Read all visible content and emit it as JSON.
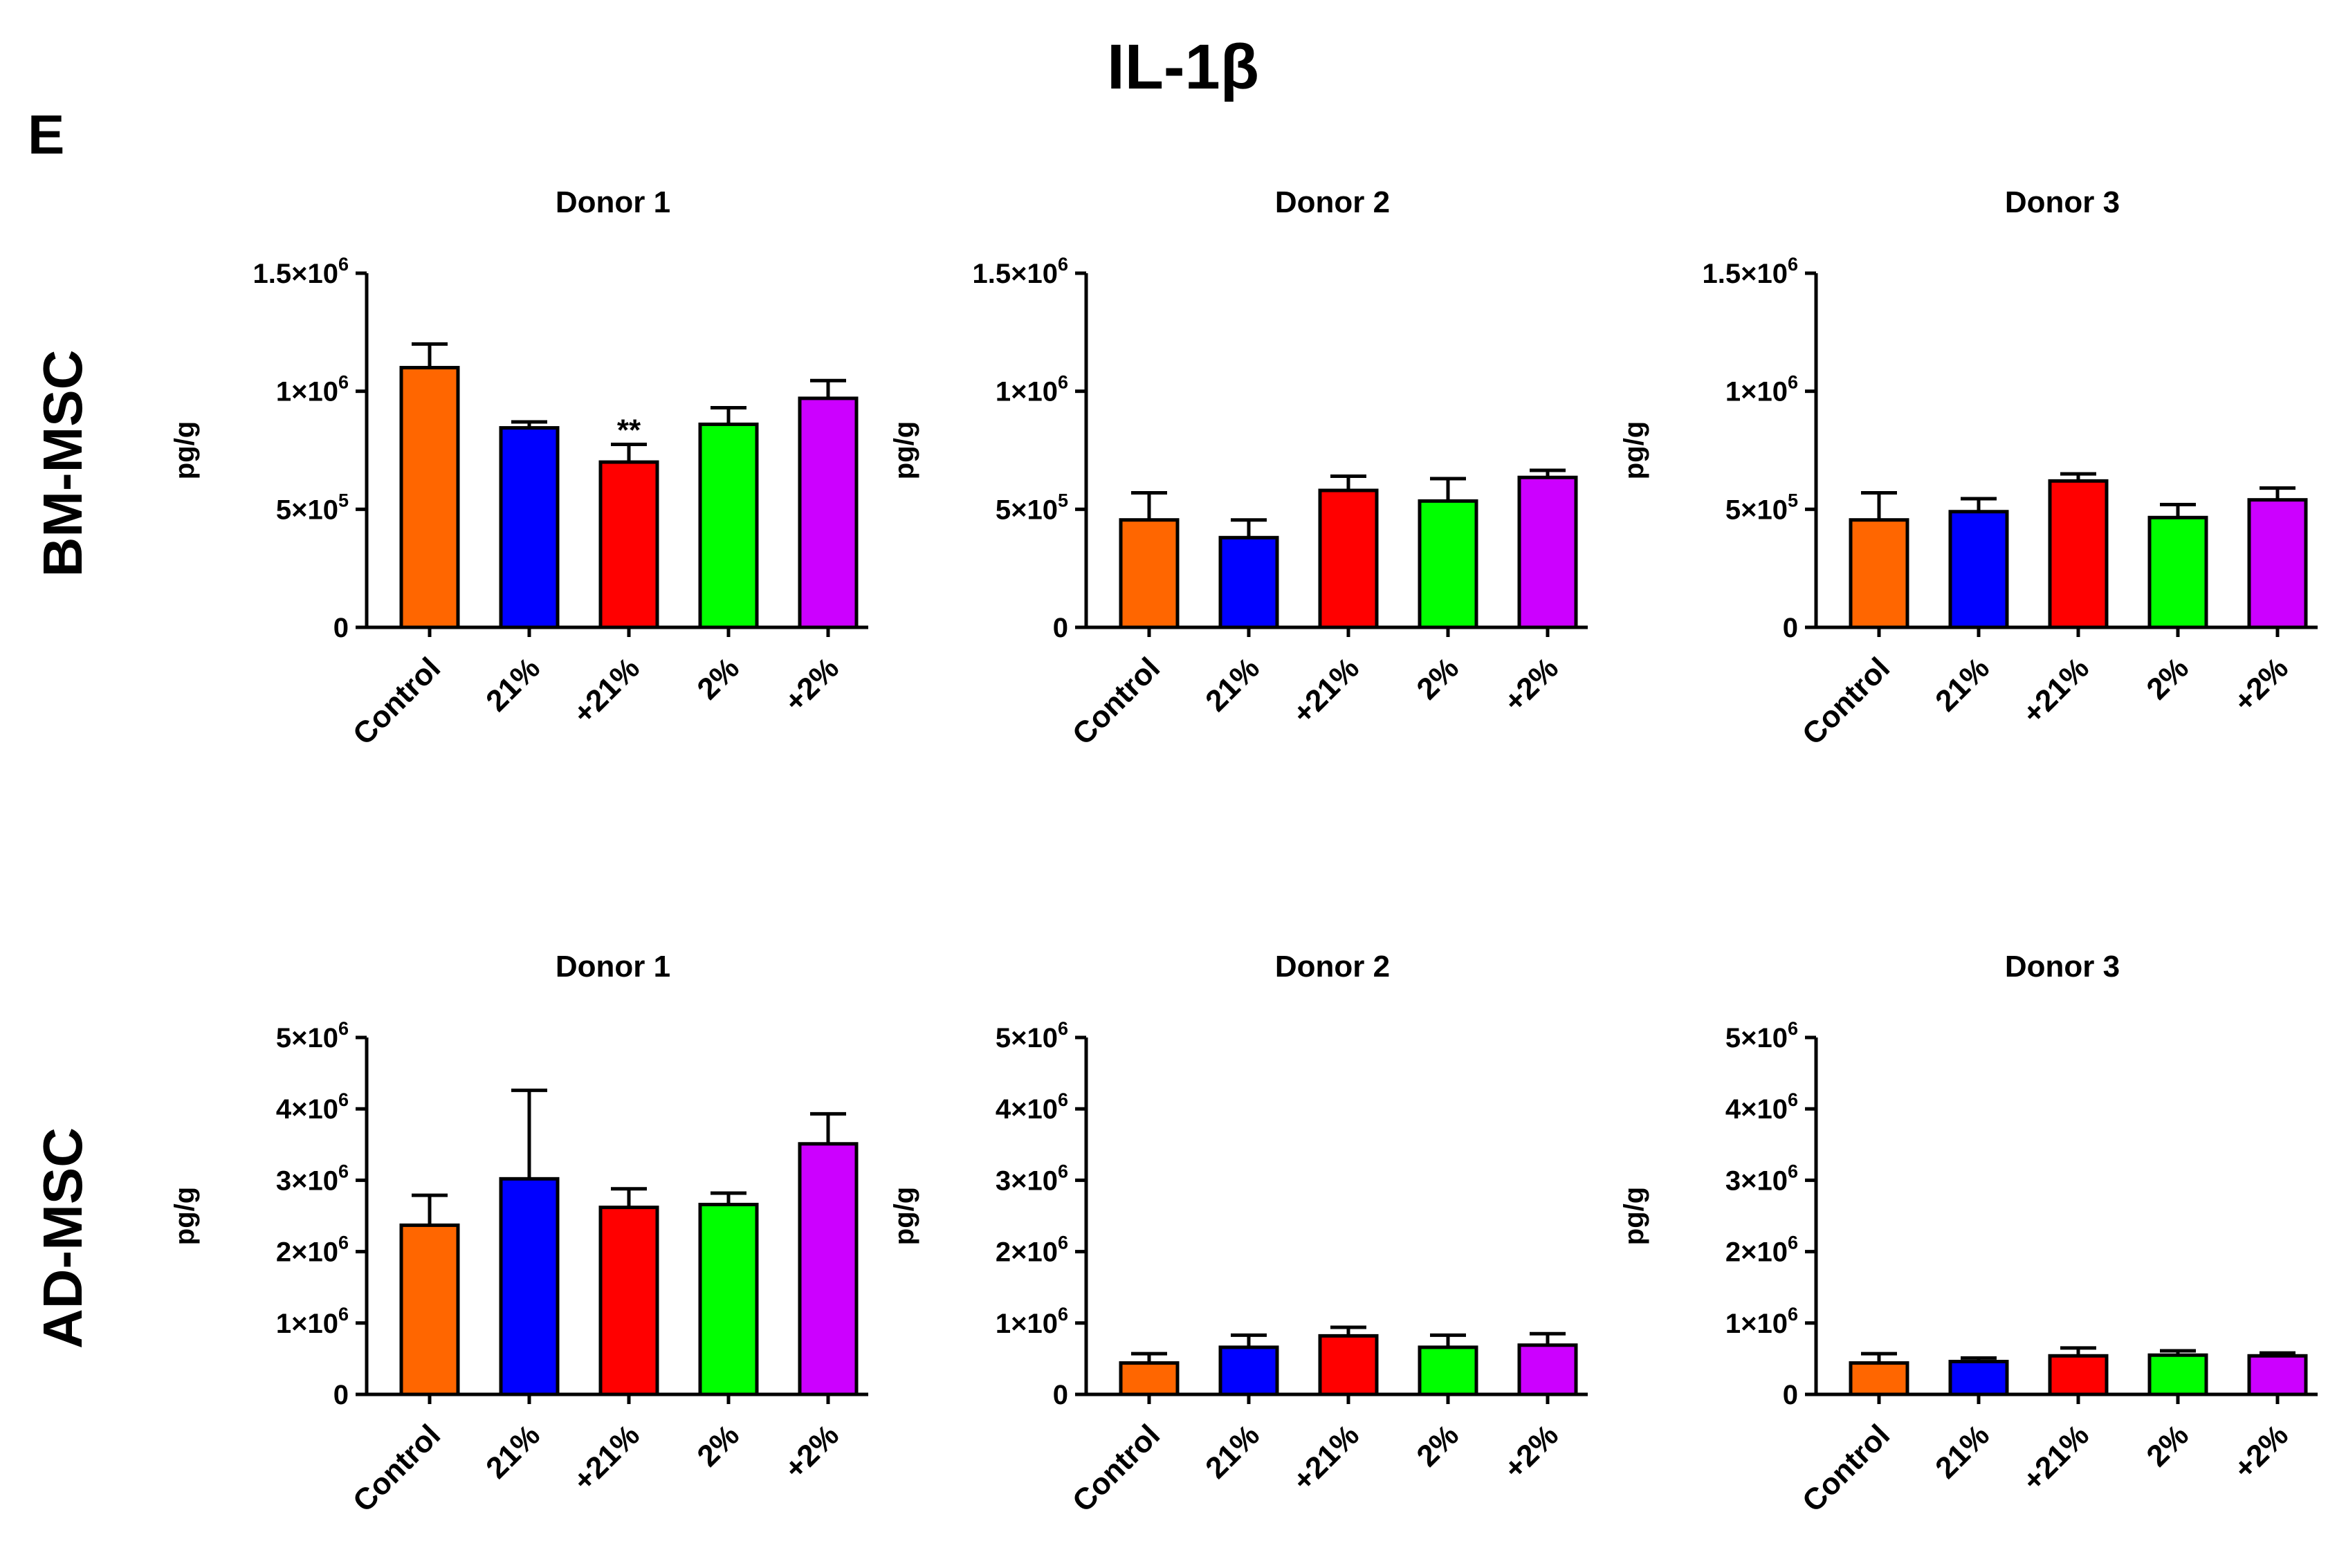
{
  "figure": {
    "title": "IL-1β",
    "panel_label": "E",
    "row_labels": [
      "BM-MSC",
      "AD-MSC"
    ]
  },
  "colors": {
    "Control": "#ff6600",
    "21%": "#0000ff",
    "+21%": "#ff0000",
    "2%": "#00ff00",
    "+2%": "#cc00ff"
  },
  "chart_data": [
    {
      "type": "bar",
      "row": "BM-MSC",
      "title": "Donor 1",
      "ylabel": "pg/g",
      "categories": [
        "Control",
        "21%",
        "+21%",
        "2%",
        "+2%"
      ],
      "values": [
        1100000,
        845000,
        700000,
        860000,
        970000
      ],
      "errors": [
        100000,
        25000,
        75000,
        70000,
        75000
      ],
      "ylim": [
        0,
        1500000
      ],
      "yticks": [
        {
          "value": 0,
          "mant": "0",
          "exp": ""
        },
        {
          "value": 500000,
          "mant": "5×10",
          "exp": "5"
        },
        {
          "value": 1000000,
          "mant": "1×10",
          "exp": "6"
        },
        {
          "value": 1500000,
          "mant": "1.5×10",
          "exp": "6"
        }
      ],
      "annotations": [
        {
          "category": "+21%",
          "text": "**"
        }
      ]
    },
    {
      "type": "bar",
      "row": "BM-MSC",
      "title": "Donor 2",
      "ylabel": "pg/g",
      "categories": [
        "Control",
        "21%",
        "+21%",
        "2%",
        "+2%"
      ],
      "values": [
        455000,
        380000,
        580000,
        535000,
        635000
      ],
      "errors": [
        115000,
        75000,
        60000,
        95000,
        30000
      ],
      "ylim": [
        0,
        1500000
      ],
      "yticks": [
        {
          "value": 0,
          "mant": "0",
          "exp": ""
        },
        {
          "value": 500000,
          "mant": "5×10",
          "exp": "5"
        },
        {
          "value": 1000000,
          "mant": "1×10",
          "exp": "6"
        },
        {
          "value": 1500000,
          "mant": "1.5×10",
          "exp": "6"
        }
      ],
      "annotations": []
    },
    {
      "type": "bar",
      "row": "BM-MSC",
      "title": "Donor 3",
      "ylabel": "pg/g",
      "categories": [
        "Control",
        "21%",
        "+21%",
        "2%",
        "+2%"
      ],
      "values": [
        455000,
        490000,
        620000,
        465000,
        540000
      ],
      "errors": [
        115000,
        55000,
        30000,
        55000,
        50000
      ],
      "ylim": [
        0,
        1500000
      ],
      "yticks": [
        {
          "value": 0,
          "mant": "0",
          "exp": ""
        },
        {
          "value": 500000,
          "mant": "5×10",
          "exp": "5"
        },
        {
          "value": 1000000,
          "mant": "1×10",
          "exp": "6"
        },
        {
          "value": 1500000,
          "mant": "1.5×10",
          "exp": "6"
        }
      ],
      "annotations": []
    },
    {
      "type": "bar",
      "row": "AD-MSC",
      "title": "Donor 1",
      "ylabel": "pg/g",
      "categories": [
        "Control",
        "21%",
        "+21%",
        "2%",
        "+2%"
      ],
      "values": [
        2370000,
        3020000,
        2620000,
        2660000,
        3510000
      ],
      "errors": [
        420000,
        1240000,
        260000,
        160000,
        420000
      ],
      "ylim": [
        0,
        5000000
      ],
      "yticks": [
        {
          "value": 0,
          "mant": "0",
          "exp": ""
        },
        {
          "value": 1000000,
          "mant": "1×10",
          "exp": "6"
        },
        {
          "value": 2000000,
          "mant": "2×10",
          "exp": "6"
        },
        {
          "value": 3000000,
          "mant": "3×10",
          "exp": "6"
        },
        {
          "value": 4000000,
          "mant": "4×10",
          "exp": "6"
        },
        {
          "value": 5000000,
          "mant": "5×10",
          "exp": "6"
        }
      ],
      "annotations": []
    },
    {
      "type": "bar",
      "row": "AD-MSC",
      "title": "Donor 2",
      "ylabel": "pg/g",
      "categories": [
        "Control",
        "21%",
        "+21%",
        "2%",
        "+2%"
      ],
      "values": [
        440000,
        660000,
        820000,
        660000,
        690000
      ],
      "errors": [
        130000,
        170000,
        120000,
        170000,
        160000
      ],
      "ylim": [
        0,
        5000000
      ],
      "yticks": [
        {
          "value": 0,
          "mant": "0",
          "exp": ""
        },
        {
          "value": 1000000,
          "mant": "1×10",
          "exp": "6"
        },
        {
          "value": 2000000,
          "mant": "2×10",
          "exp": "6"
        },
        {
          "value": 3000000,
          "mant": "3×10",
          "exp": "6"
        },
        {
          "value": 4000000,
          "mant": "4×10",
          "exp": "6"
        },
        {
          "value": 5000000,
          "mant": "5×10",
          "exp": "6"
        }
      ],
      "annotations": []
    },
    {
      "type": "bar",
      "row": "AD-MSC",
      "title": "Donor 3",
      "ylabel": "pg/g",
      "categories": [
        "Control",
        "21%",
        "+21%",
        "2%",
        "+2%"
      ],
      "values": [
        440000,
        460000,
        540000,
        550000,
        540000
      ],
      "errors": [
        130000,
        50000,
        110000,
        60000,
        40000
      ],
      "ylim": [
        0,
        5000000
      ],
      "yticks": [
        {
          "value": 0,
          "mant": "0",
          "exp": ""
        },
        {
          "value": 1000000,
          "mant": "1×10",
          "exp": "6"
        },
        {
          "value": 2000000,
          "mant": "2×10",
          "exp": "6"
        },
        {
          "value": 3000000,
          "mant": "3×10",
          "exp": "6"
        },
        {
          "value": 4000000,
          "mant": "4×10",
          "exp": "6"
        },
        {
          "value": 5000000,
          "mant": "5×10",
          "exp": "6"
        }
      ],
      "annotations": []
    }
  ]
}
